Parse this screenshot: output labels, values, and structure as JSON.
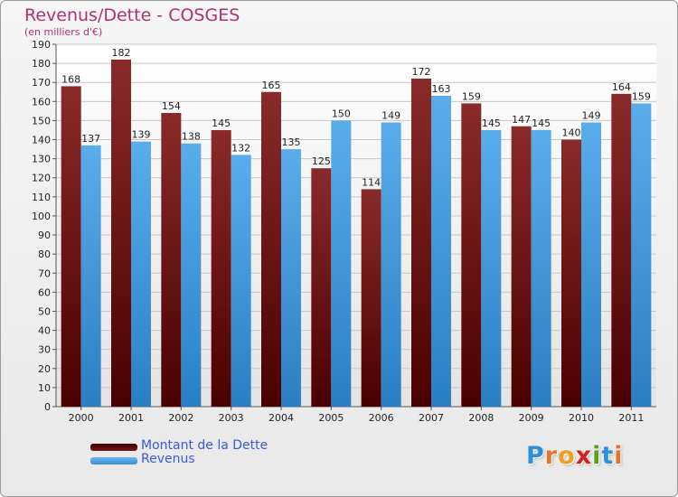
{
  "chart_data": {
    "type": "bar",
    "title": "Revenus/Dette - COSGES",
    "subtitle": "(en milliers d'€)",
    "categories": [
      "2000",
      "2001",
      "2002",
      "2003",
      "2004",
      "2005",
      "2006",
      "2007",
      "2008",
      "2009",
      "2010",
      "2011"
    ],
    "series": [
      {
        "name": "Montant de la Dette",
        "color": "#7a1a1a",
        "values": [
          168,
          182,
          154,
          145,
          165,
          125,
          114,
          172,
          159,
          147,
          140,
          164
        ]
      },
      {
        "name": "Revenus",
        "color": "#4a9fe0",
        "values": [
          137,
          139,
          138,
          132,
          135,
          150,
          149,
          163,
          145,
          145,
          149,
          159
        ]
      }
    ],
    "ylim": [
      0,
      190
    ],
    "ytick_step": 10,
    "grid": true,
    "xlabel": "",
    "ylabel": "",
    "legend_position": "bottom-left"
  },
  "branding": {
    "logo_letters": [
      "P",
      "r",
      "o",
      "x",
      "i",
      "t",
      "i"
    ],
    "logo_colors": [
      "#2f8fd8",
      "#e8732a",
      "#f0a020",
      "#d02020",
      "#5aa020",
      "#2f8fd8",
      "#e8732a"
    ]
  }
}
